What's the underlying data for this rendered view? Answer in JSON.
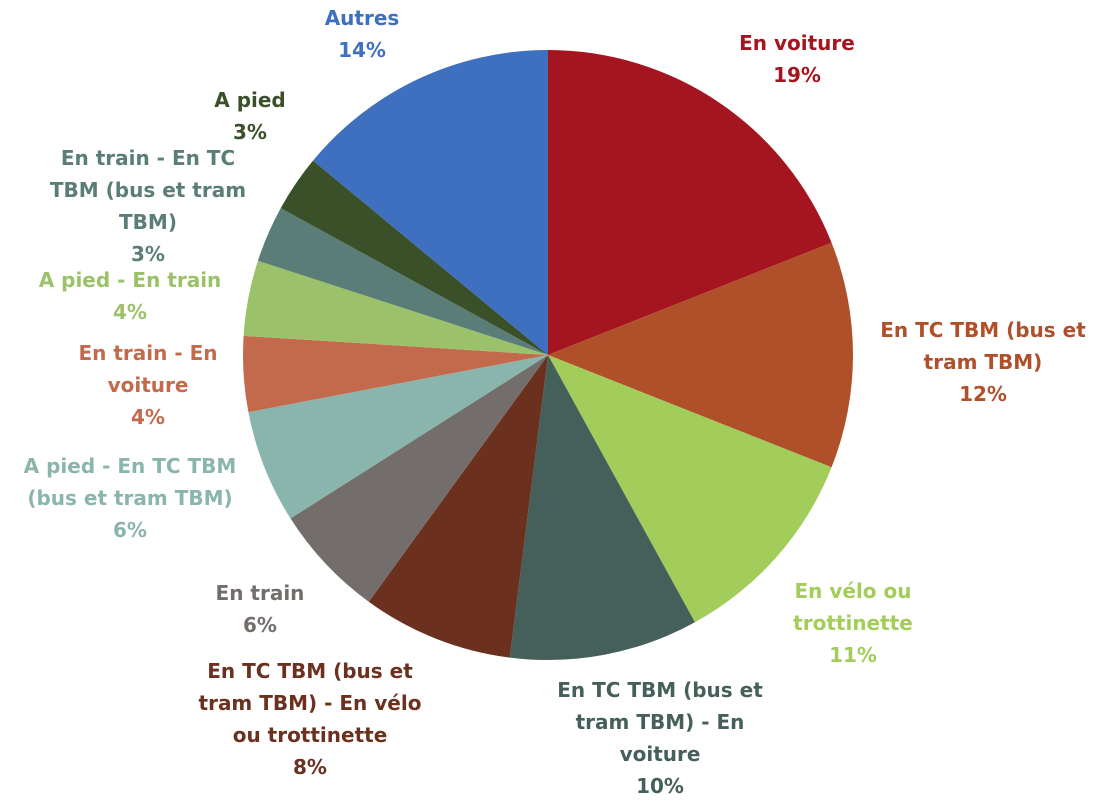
{
  "chart_data": {
    "type": "pie",
    "categories": [
      "En voiture",
      "En TC TBM (bus et tram TBM)",
      "En vélo ou trottinette",
      "En TC TBM (bus et tram TBM) - En voiture",
      "En TC TBM (bus et tram TBM) - En vélo ou trottinette",
      "En train",
      "A pied - En TC TBM (bus et tram TBM)",
      "En train - En voiture",
      "A pied - En train",
      "En train - En TC TBM (bus et tram TBM)",
      "A pied",
      "Autres"
    ],
    "values": [
      19,
      12,
      11,
      10,
      8,
      6,
      6,
      4,
      4,
      3,
      3,
      14
    ],
    "value_labels": [
      "19%",
      "12%",
      "11%",
      "10%",
      "8%",
      "6%",
      "6%",
      "4%",
      "4%",
      "3%",
      "3%",
      "14%"
    ],
    "colors": [
      "#a51520",
      "#b0502a",
      "#a3cd5a",
      "#455f5a",
      "#6b301e",
      "#736e6b",
      "#8ab5ad",
      "#c46a4c",
      "#9bc26a",
      "#5b7d78",
      "#3a5029",
      "#3f6fbf"
    ]
  }
}
